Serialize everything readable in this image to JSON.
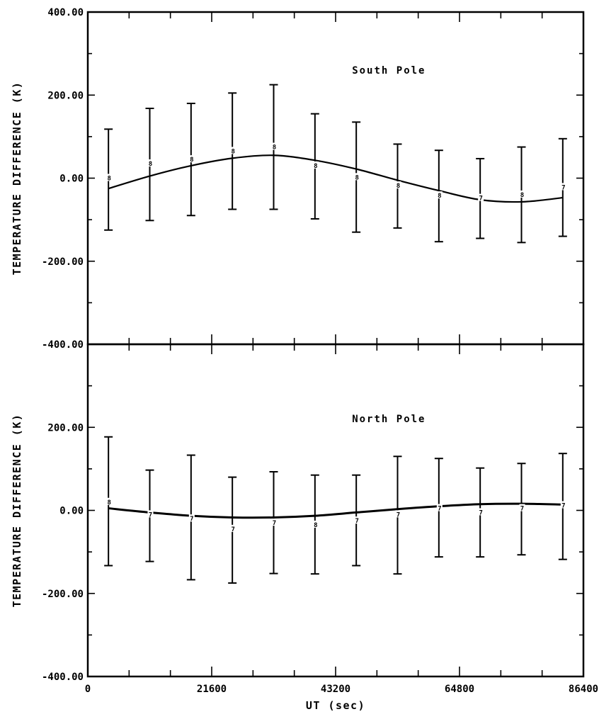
{
  "chart_data": [
    {
      "type": "line",
      "panel_label": "South Pole",
      "ylabel": "TEMPERATURE DIFFERENCE (K)",
      "xlabel": "",
      "xlim": [
        0,
        86400
      ],
      "ylim": [
        -400,
        400
      ],
      "x_ticks": [],
      "y_ticks": [
        "400.00",
        "200.00",
        "0.00",
        "-200.00",
        "-400.00"
      ],
      "curve": {
        "x": [
          3600,
          10800,
          18000,
          25200,
          32400,
          39600,
          46800,
          54000,
          61200,
          68400,
          75600,
          82800
        ],
        "y": [
          -25,
          5,
          30,
          48,
          55,
          43,
          22,
          -5,
          -30,
          -52,
          -57,
          -47
        ]
      },
      "points": [
        {
          "x": 3600,
          "mean": 0,
          "upper": 118,
          "lower": -125,
          "n": "8"
        },
        {
          "x": 10800,
          "mean": 35,
          "upper": 168,
          "lower": -102,
          "n": "8"
        },
        {
          "x": 18000,
          "mean": 45,
          "upper": 180,
          "lower": -90,
          "n": "8"
        },
        {
          "x": 25200,
          "mean": 65,
          "upper": 205,
          "lower": -75,
          "n": "8"
        },
        {
          "x": 32400,
          "mean": 75,
          "upper": 225,
          "lower": -75,
          "n": "8"
        },
        {
          "x": 39600,
          "mean": 30,
          "upper": 155,
          "lower": -98,
          "n": "8"
        },
        {
          "x": 46800,
          "mean": 2,
          "upper": 135,
          "lower": -130,
          "n": "8"
        },
        {
          "x": 54000,
          "mean": -18,
          "upper": 82,
          "lower": -120,
          "n": "8"
        },
        {
          "x": 61200,
          "mean": -42,
          "upper": 67,
          "lower": -153,
          "n": "8"
        },
        {
          "x": 68400,
          "mean": -48,
          "upper": 47,
          "lower": -145,
          "n": "7"
        },
        {
          "x": 75600,
          "mean": -40,
          "upper": 75,
          "lower": -155,
          "n": "8"
        },
        {
          "x": 82800,
          "mean": -22,
          "upper": 95,
          "lower": -140,
          "n": "7"
        }
      ]
    },
    {
      "type": "line",
      "panel_label": "North Pole",
      "ylabel": "TEMPERATURE DIFFERENCE (K)",
      "xlabel": "UT (sec)",
      "xlim": [
        0,
        86400
      ],
      "ylim": [
        -400,
        400
      ],
      "x_ticks": [
        "0",
        "21600",
        "43200",
        "64800",
        "86400"
      ],
      "y_ticks": [
        "200.00",
        "0.00",
        "-200.00",
        "-400.00"
      ],
      "curve": {
        "x": [
          3600,
          10800,
          18000,
          25200,
          32400,
          39600,
          46800,
          54000,
          61200,
          68400,
          75600,
          82800
        ],
        "y": [
          5,
          -5,
          -13,
          -17,
          -17,
          -13,
          -5,
          3,
          10,
          15,
          16,
          14
        ]
      },
      "points": [
        {
          "x": 3600,
          "mean": 20,
          "upper": 177,
          "lower": -133,
          "n": "8"
        },
        {
          "x": 10800,
          "mean": -10,
          "upper": 97,
          "lower": -123,
          "n": "7"
        },
        {
          "x": 18000,
          "mean": -20,
          "upper": 133,
          "lower": -167,
          "n": "7"
        },
        {
          "x": 25200,
          "mean": -45,
          "upper": 80,
          "lower": -175,
          "n": "7"
        },
        {
          "x": 32400,
          "mean": -30,
          "upper": 93,
          "lower": -152,
          "n": "7"
        },
        {
          "x": 39600,
          "mean": -35,
          "upper": 85,
          "lower": -153,
          "n": "8"
        },
        {
          "x": 46800,
          "mean": -25,
          "upper": 85,
          "lower": -133,
          "n": "7"
        },
        {
          "x": 54000,
          "mean": -10,
          "upper": 130,
          "lower": -153,
          "n": "7"
        },
        {
          "x": 61200,
          "mean": 5,
          "upper": 125,
          "lower": -112,
          "n": "7"
        },
        {
          "x": 68400,
          "mean": -5,
          "upper": 102,
          "lower": -112,
          "n": "7"
        },
        {
          "x": 75600,
          "mean": 5,
          "upper": 113,
          "lower": -107,
          "n": "7"
        },
        {
          "x": 82800,
          "mean": 12,
          "upper": 137,
          "lower": -118,
          "n": "7"
        }
      ]
    }
  ]
}
